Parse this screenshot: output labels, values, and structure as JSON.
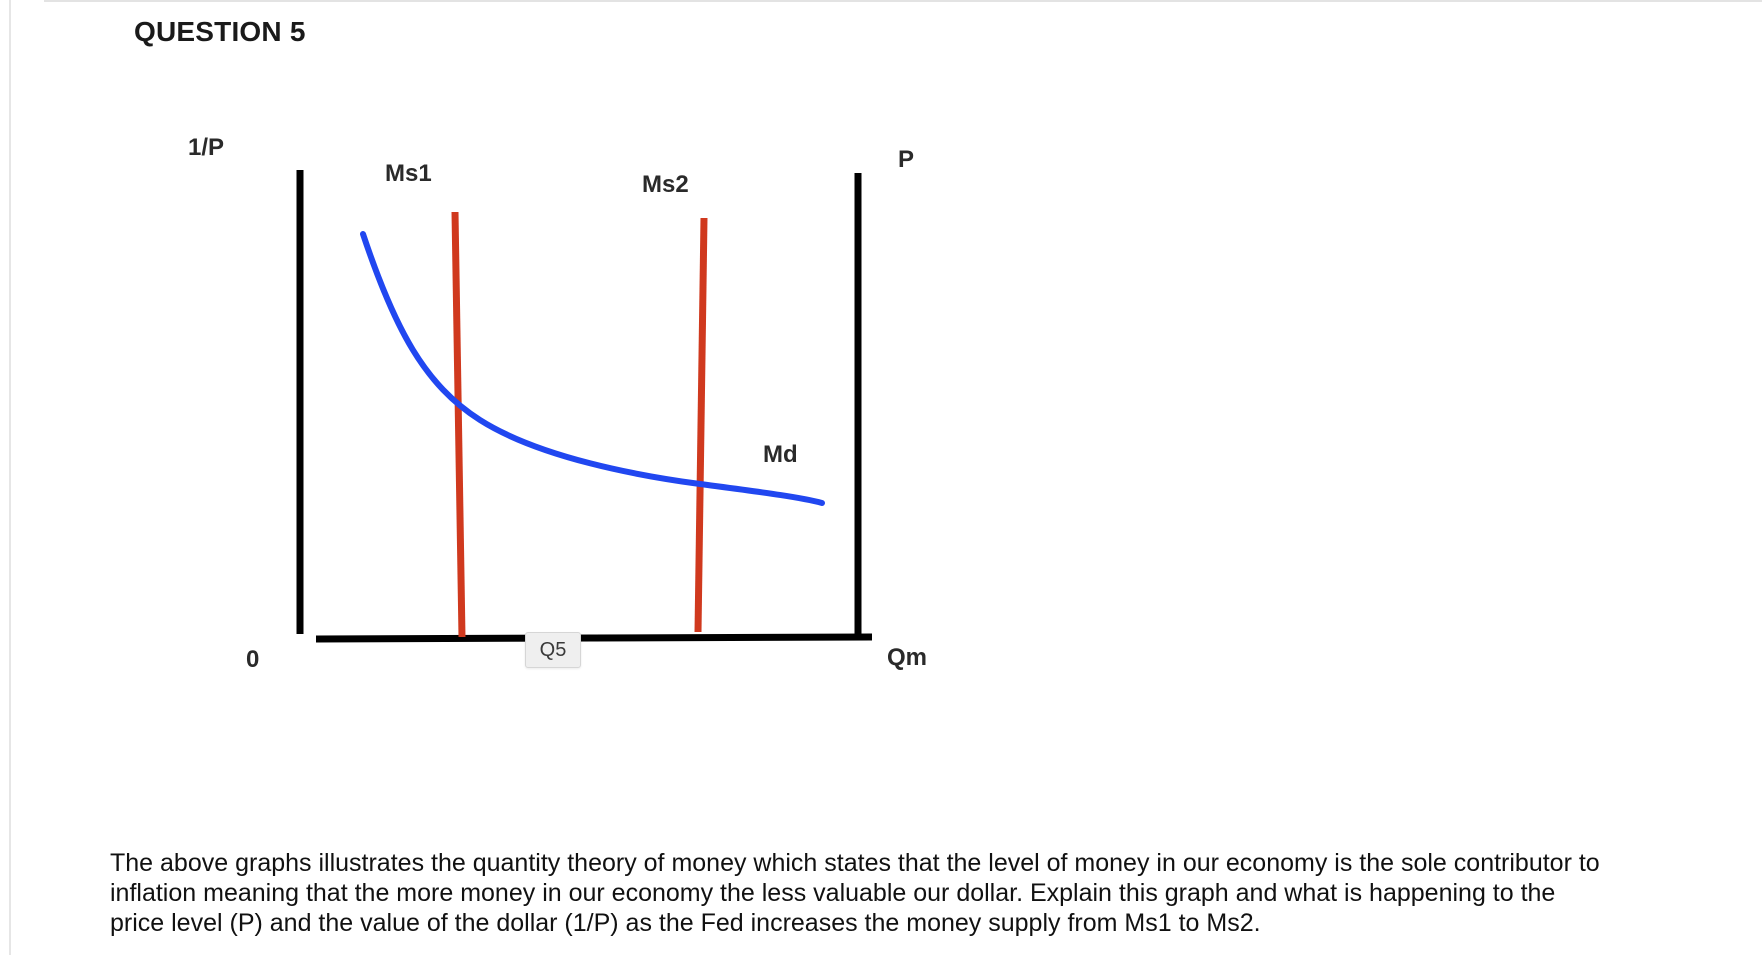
{
  "question": {
    "title": "QUESTION 5",
    "body_lines": [
      "The above graphs illustrates the quantity theory of money which states that the level of money in our economy is the sole contributor to",
      "inflation meaning that the more money in our economy the less valuable our dollar.  Explain this graph and what is happening to the",
      "price level (P) and the value of the dollar (1/P) as the Fed increases the money supply from Ms1 to Ms2."
    ]
  },
  "graph": {
    "left_axis_label": "1/P",
    "right_axis_label": "P",
    "origin_label": "0",
    "x_axis_label": "Qm",
    "supply_curve_1_label": "Ms1",
    "supply_curve_2_label": "Ms2",
    "demand_curve_label": "Md",
    "colors": {
      "axes": "#000000",
      "money_supply": "#d0391e",
      "money_demand": "#2147f0"
    }
  },
  "tooltip": {
    "text": "Q5"
  }
}
